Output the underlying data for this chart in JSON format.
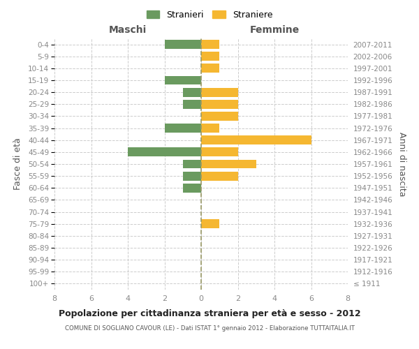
{
  "age_groups": [
    "100+",
    "95-99",
    "90-94",
    "85-89",
    "80-84",
    "75-79",
    "70-74",
    "65-69",
    "60-64",
    "55-59",
    "50-54",
    "45-49",
    "40-44",
    "35-39",
    "30-34",
    "25-29",
    "20-24",
    "15-19",
    "10-14",
    "5-9",
    "0-4"
  ],
  "birth_years": [
    "≤ 1911",
    "1912-1916",
    "1917-1921",
    "1922-1926",
    "1927-1931",
    "1932-1936",
    "1937-1941",
    "1942-1946",
    "1947-1951",
    "1952-1956",
    "1957-1961",
    "1962-1966",
    "1967-1971",
    "1972-1976",
    "1977-1981",
    "1982-1986",
    "1987-1991",
    "1992-1996",
    "1997-2001",
    "2002-2006",
    "2007-2011"
  ],
  "maschi": [
    0,
    0,
    0,
    0,
    0,
    0,
    0,
    0,
    1,
    1,
    1,
    4,
    0,
    2,
    0,
    1,
    1,
    2,
    0,
    0,
    2
  ],
  "femmine": [
    0,
    0,
    0,
    0,
    0,
    1,
    0,
    0,
    0,
    2,
    3,
    2,
    6,
    1,
    2,
    2,
    2,
    0,
    1,
    1,
    1
  ],
  "maschi_color": "#6a9a5f",
  "femmine_color": "#f5b731",
  "xlim": 8,
  "title": "Popolazione per cittadinanza straniera per età e sesso - 2012",
  "subtitle": "COMUNE DI SOGLIANO CAVOUR (LE) - Dati ISTAT 1° gennaio 2012 - Elaborazione TUTTAITALIA.IT",
  "ylabel_left": "Fasce di età",
  "ylabel_right": "Anni di nascita",
  "xlabel_maschi": "Maschi",
  "xlabel_femmine": "Femmine",
  "legend_maschi": "Stranieri",
  "legend_femmine": "Straniere",
  "bg_color": "#ffffff",
  "grid_color": "#cccccc",
  "center_line_color": "#999966",
  "tick_color": "#888888",
  "bar_height": 0.75
}
